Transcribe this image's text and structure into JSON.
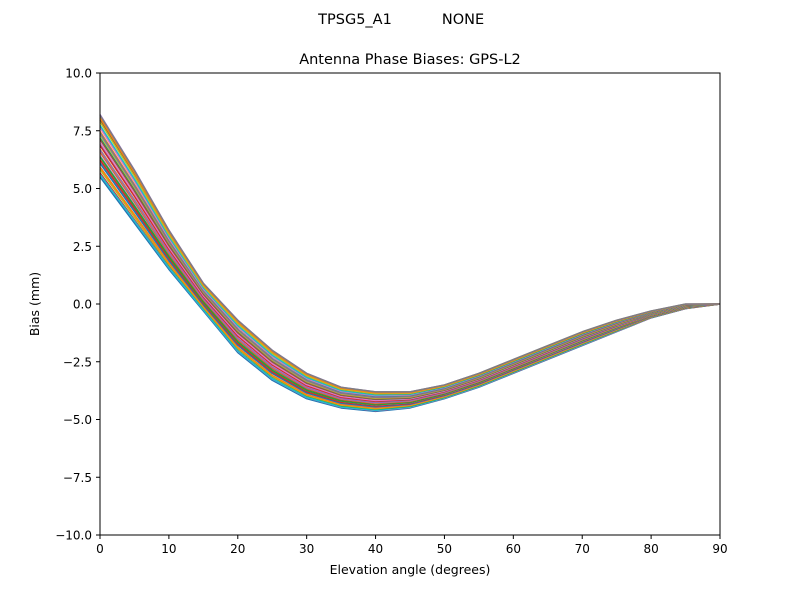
{
  "suptitle": {
    "antenna": "TPSG5_A1",
    "radome": "NONE"
  },
  "chart_data": {
    "type": "line",
    "title": "Antenna Phase Biases: GPS-L2",
    "xlabel": "Elevation angle (degrees)",
    "ylabel": "Bias (mm)",
    "xlim": [
      0,
      90
    ],
    "ylim": [
      -10,
      10
    ],
    "xticks": [
      0,
      10,
      20,
      30,
      40,
      50,
      60,
      70,
      80,
      90
    ],
    "yticks": [
      -10.0,
      -7.5,
      -5.0,
      -2.5,
      0.0,
      2.5,
      5.0,
      7.5,
      10.0
    ],
    "ytick_labels": [
      "−10.0",
      "−7.5",
      "−5.0",
      "−2.5",
      "0.0",
      "2.5",
      "5.0",
      "7.5",
      "10.0"
    ],
    "grid": false,
    "legend": false,
    "x": [
      0,
      5,
      10,
      15,
      20,
      25,
      30,
      35,
      40,
      45,
      50,
      55,
      60,
      65,
      70,
      75,
      80,
      85,
      90
    ],
    "envelope": {
      "upper": [
        8.2,
        5.8,
        3.2,
        0.9,
        -0.7,
        -2.0,
        -3.0,
        -3.6,
        -3.8,
        -3.8,
        -3.5,
        -3.0,
        -2.4,
        -1.8,
        -1.2,
        -0.7,
        -0.3,
        0.0,
        0.0
      ],
      "lower": [
        5.5,
        3.5,
        1.5,
        -0.3,
        -2.1,
        -3.3,
        -4.1,
        -4.5,
        -4.65,
        -4.5,
        -4.1,
        -3.6,
        -3.0,
        -2.4,
        -1.8,
        -1.2,
        -0.6,
        -0.2,
        0.0
      ]
    },
    "series_count": 40,
    "colors": [
      "#1f77b4",
      "#ff7f0e",
      "#2ca02c",
      "#d62728",
      "#9467bd",
      "#8c564b",
      "#e377c2",
      "#7f7f7f",
      "#bcbd22",
      "#17becf"
    ]
  }
}
